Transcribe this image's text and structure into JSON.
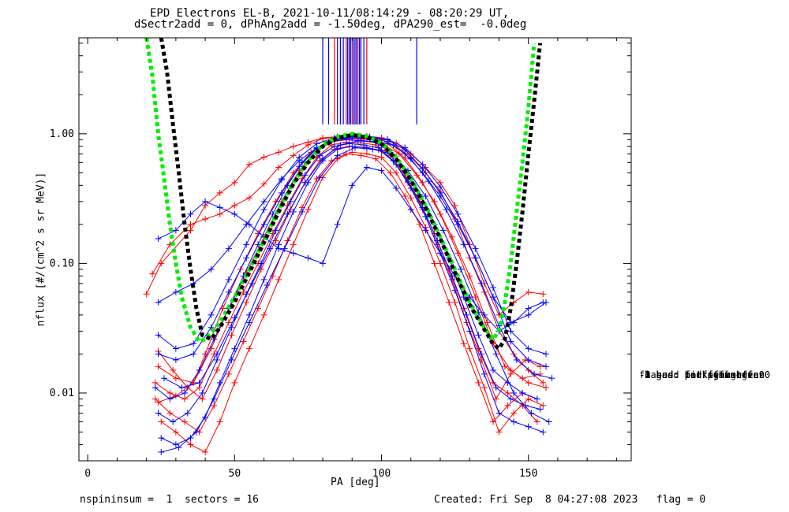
{
  "title_line1": "EPD Electrons EL-B, 2021-10-11/08:14:29 - 08:20:29 UT,",
  "title_line2": "dSectr2add = 0, dPhAng2add = -1.50deg, dPA290_est=  -0.0deg",
  "footer": {
    "left": "nspininsum =  1  sectors = 16",
    "right": "Created: Fri Sep  8 04:27:08 2023   flag = 0"
  },
  "legend": {
    "title": "flag",
    "items": [
      " 0 good fit",
      " 1 bad: not converge",
      " 2 bad: no fit",
      " 3 bad: bad fgm state",
      "-1 sus: far off median",
      "-2 sus: not symmetric",
      "-3 sus: fit peak off 90",
      "-4 sus: peaks high var"
    ]
  },
  "chart_data": {
    "type": "line",
    "title": "EPD Electrons EL-B, 2021-10-11/08:14:29 - 08:20:29 UT,",
    "subtitle": "dSectr2add = 0, dPhAng2add = -1.50deg, dPA290_est=  -0.0deg",
    "xlabel": "PA [deg]",
    "ylabel": "nflux [#/(cm^2 s sr MeV)]",
    "xlim": [
      -3,
      185
    ],
    "ylim": [
      0.003,
      5.5
    ],
    "yscale": "log",
    "xticks": [
      0,
      50,
      100,
      150
    ],
    "xtick_labels": [
      "0",
      "50",
      "100",
      "150"
    ],
    "yticks": [
      0.01,
      0.1,
      1.0
    ],
    "ytick_labels": [
      "0.01",
      "0.10",
      "1.00"
    ],
    "colors": {
      "red": "#ff0000",
      "blue": "#0000ff",
      "green": "#00ee00",
      "black": "#000000"
    },
    "fit_curves": [
      {
        "color": "#00ee00",
        "x": [
          20,
          22,
          24,
          26,
          28,
          30,
          32,
          35,
          38,
          40,
          45,
          50,
          55,
          60,
          65,
          70,
          75,
          80,
          85,
          90,
          95,
          100,
          105,
          110,
          115,
          120,
          125,
          130,
          135,
          138,
          140,
          142,
          144,
          146,
          148,
          150,
          152
        ],
        "y": [
          5.5,
          2.8,
          1.0,
          0.45,
          0.2,
          0.1,
          0.055,
          0.032,
          0.025,
          0.026,
          0.035,
          0.055,
          0.09,
          0.15,
          0.26,
          0.42,
          0.62,
          0.82,
          0.95,
          1.0,
          0.96,
          0.85,
          0.66,
          0.45,
          0.28,
          0.16,
          0.09,
          0.05,
          0.032,
          0.026,
          0.03,
          0.05,
          0.1,
          0.25,
          0.6,
          1.6,
          5.0
        ]
      },
      {
        "color": "#000000",
        "x": [
          25,
          27,
          29,
          31,
          33,
          35,
          37,
          39,
          42,
          45,
          50,
          55,
          60,
          65,
          70,
          75,
          80,
          85,
          90,
          95,
          100,
          105,
          110,
          115,
          120,
          125,
          130,
          135,
          138,
          140,
          142,
          144,
          146,
          148,
          150,
          152,
          154
        ],
        "y": [
          5.5,
          3.0,
          1.2,
          0.5,
          0.2,
          0.09,
          0.045,
          0.028,
          0.026,
          0.032,
          0.05,
          0.085,
          0.145,
          0.25,
          0.41,
          0.6,
          0.8,
          0.93,
          0.98,
          0.94,
          0.83,
          0.64,
          0.44,
          0.27,
          0.155,
          0.085,
          0.048,
          0.031,
          0.024,
          0.022,
          0.026,
          0.045,
          0.1,
          0.25,
          0.7,
          1.8,
          5.0
        ]
      }
    ],
    "fit_vertical_lines_x": [
      80,
      82,
      84,
      85,
      86,
      87,
      88,
      88.5,
      89,
      89.5,
      90,
      90.5,
      91,
      91.5,
      92,
      92.5,
      93,
      94,
      95,
      112
    ],
    "series_red": [
      {
        "x": [
          20,
          25,
          35,
          40,
          45,
          50,
          55,
          60,
          65,
          70,
          75,
          80,
          85,
          90,
          95,
          100,
          105,
          110,
          115,
          120,
          125,
          130,
          135,
          140,
          145,
          150,
          155
        ],
        "y": [
          0.058,
          0.1,
          0.18,
          0.28,
          0.35,
          0.42,
          0.58,
          0.66,
          0.72,
          0.8,
          0.86,
          0.93,
          0.95,
          0.97,
          0.96,
          0.93,
          0.85,
          0.7,
          0.55,
          0.42,
          0.28,
          0.14,
          0.07,
          0.04,
          0.05,
          0.06,
          0.058
        ]
      },
      {
        "x": [
          22,
          28,
          35,
          40,
          45,
          50,
          55,
          60,
          65,
          70,
          75,
          80,
          85,
          90,
          95,
          100,
          105,
          110,
          115,
          120,
          125,
          130,
          135,
          140,
          145,
          150,
          155
        ],
        "y": [
          0.083,
          0.14,
          0.2,
          0.22,
          0.24,
          0.28,
          0.32,
          0.41,
          0.55,
          0.68,
          0.82,
          0.92,
          0.94,
          0.95,
          0.93,
          0.9,
          0.8,
          0.66,
          0.5,
          0.36,
          0.22,
          0.11,
          0.06,
          0.03,
          0.02,
          0.015,
          0.012
        ]
      },
      {
        "x": [
          23,
          28,
          33,
          38,
          43,
          48,
          53,
          58,
          63,
          68,
          73,
          78,
          83,
          88,
          93,
          98,
          103,
          108,
          113,
          118,
          123,
          128,
          133,
          138,
          143,
          148,
          153
        ],
        "y": [
          0.012,
          0.01,
          0.009,
          0.011,
          0.02,
          0.035,
          0.06,
          0.1,
          0.17,
          0.28,
          0.45,
          0.66,
          0.82,
          0.86,
          0.85,
          0.82,
          0.68,
          0.48,
          0.3,
          0.17,
          0.09,
          0.045,
          0.022,
          0.012,
          0.01,
          0.008,
          0.006
        ]
      },
      {
        "x": [
          24,
          29,
          34,
          39,
          44,
          49,
          54,
          59,
          64,
          69,
          74,
          79,
          84,
          89,
          94,
          99,
          104,
          109,
          114,
          119,
          124,
          129,
          134,
          139,
          144,
          149,
          154
        ],
        "y": [
          0.021,
          0.015,
          0.011,
          0.009,
          0.015,
          0.028,
          0.05,
          0.09,
          0.15,
          0.26,
          0.42,
          0.62,
          0.76,
          0.8,
          0.79,
          0.75,
          0.62,
          0.42,
          0.26,
          0.14,
          0.075,
          0.035,
          0.018,
          0.009,
          0.014,
          0.018,
          0.016
        ]
      },
      {
        "x": [
          23,
          28,
          33,
          38,
          43,
          48,
          53,
          58,
          63,
          68,
          73,
          78,
          83,
          88,
          93,
          98,
          103,
          108,
          113,
          118,
          123,
          128,
          133,
          138,
          143,
          148,
          153
        ],
        "y": [
          0.009,
          0.007,
          0.006,
          0.005,
          0.008,
          0.014,
          0.025,
          0.045,
          0.08,
          0.15,
          0.27,
          0.45,
          0.62,
          0.7,
          0.68,
          0.64,
          0.5,
          0.33,
          0.2,
          0.1,
          0.05,
          0.024,
          0.012,
          0.006,
          0.008,
          0.01,
          0.009
        ]
      },
      {
        "x": [
          25,
          30,
          35,
          40,
          45,
          50,
          55,
          60,
          65,
          70,
          75,
          80,
          85,
          90,
          95,
          100,
          105,
          110,
          115,
          120,
          125,
          130,
          135,
          140,
          145,
          150,
          155
        ],
        "y": [
          0.006,
          0.005,
          0.004,
          0.0035,
          0.006,
          0.012,
          0.022,
          0.04,
          0.075,
          0.14,
          0.26,
          0.46,
          0.64,
          0.72,
          0.7,
          0.66,
          0.5,
          0.32,
          0.19,
          0.1,
          0.05,
          0.022,
          0.011,
          0.005,
          0.007,
          0.009,
          0.008
        ]
      },
      {
        "x": [
          24,
          30,
          36,
          40,
          46,
          52,
          58,
          64,
          70,
          76,
          82,
          88,
          94,
          100,
          106,
          112,
          118,
          124,
          130,
          136,
          142,
          148,
          154
        ],
        "y": [
          0.016,
          0.013,
          0.012,
          0.02,
          0.045,
          0.09,
          0.17,
          0.3,
          0.5,
          0.72,
          0.86,
          0.9,
          0.88,
          0.84,
          0.7,
          0.48,
          0.3,
          0.16,
          0.08,
          0.035,
          0.016,
          0.013,
          0.014
        ]
      },
      {
        "x": [
          24,
          30,
          36,
          42,
          48,
          54,
          60,
          66,
          72,
          78,
          84,
          90,
          96,
          102,
          108,
          114,
          120,
          126,
          132,
          138,
          144,
          150,
          156
        ],
        "y": [
          0.0085,
          0.0095,
          0.012,
          0.022,
          0.045,
          0.085,
          0.16,
          0.3,
          0.52,
          0.75,
          0.88,
          0.92,
          0.9,
          0.84,
          0.65,
          0.42,
          0.24,
          0.12,
          0.055,
          0.024,
          0.015,
          0.012,
          0.011
        ]
      }
    ],
    "series_blue": [
      {
        "x": [
          24,
          30,
          35,
          40,
          45,
          50,
          55,
          60,
          65,
          70,
          75,
          80,
          85,
          90,
          95,
          100,
          105,
          110,
          115,
          120,
          125,
          130,
          135,
          140,
          145,
          150,
          155
        ],
        "y": [
          0.155,
          0.18,
          0.24,
          0.3,
          0.27,
          0.24,
          0.2,
          0.16,
          0.13,
          0.12,
          0.11,
          0.1,
          0.2,
          0.4,
          0.55,
          0.52,
          0.38,
          0.26,
          0.18,
          0.12,
          0.08,
          0.055,
          0.04,
          0.03,
          0.035,
          0.045,
          0.05
        ]
      },
      {
        "x": [
          24,
          30,
          36,
          42,
          48,
          54,
          60,
          66,
          72,
          78,
          84,
          90,
          96,
          102,
          108,
          114,
          120,
          126,
          132,
          138,
          144,
          150,
          156
        ],
        "y": [
          0.05,
          0.06,
          0.07,
          0.09,
          0.13,
          0.2,
          0.3,
          0.45,
          0.62,
          0.78,
          0.9,
          0.93,
          0.92,
          0.87,
          0.7,
          0.5,
          0.33,
          0.2,
          0.11,
          0.055,
          0.035,
          0.04,
          0.05
        ]
      },
      {
        "x": [
          23,
          28,
          33,
          38,
          43,
          48,
          53,
          58,
          63,
          68,
          73,
          78,
          83,
          88,
          93,
          98,
          103,
          108,
          113,
          118,
          123,
          128,
          133,
          138,
          143,
          148,
          153
        ],
        "y": [
          0.011,
          0.009,
          0.01,
          0.015,
          0.026,
          0.045,
          0.08,
          0.14,
          0.24,
          0.4,
          0.6,
          0.78,
          0.88,
          0.9,
          0.89,
          0.86,
          0.72,
          0.52,
          0.34,
          0.2,
          0.11,
          0.055,
          0.028,
          0.015,
          0.012,
          0.01,
          0.009
        ]
      },
      {
        "x": [
          24,
          29,
          34,
          39,
          44,
          49,
          54,
          59,
          64,
          69,
          74,
          79,
          84,
          89,
          94,
          99,
          104,
          109,
          114,
          119,
          124,
          129,
          134,
          139,
          144,
          149,
          154
        ],
        "y": [
          0.007,
          0.006,
          0.007,
          0.01,
          0.018,
          0.032,
          0.058,
          0.1,
          0.18,
          0.3,
          0.48,
          0.68,
          0.8,
          0.84,
          0.82,
          0.78,
          0.62,
          0.43,
          0.27,
          0.15,
          0.08,
          0.04,
          0.02,
          0.011,
          0.009,
          0.008,
          0.0075
        ]
      },
      {
        "x": [
          25,
          30,
          35,
          40,
          45,
          50,
          55,
          60,
          65,
          70,
          75,
          80,
          85,
          90,
          95,
          100,
          105,
          110,
          115,
          120,
          125,
          130,
          135,
          140,
          145,
          150,
          155
        ],
        "y": [
          0.0045,
          0.004,
          0.0045,
          0.0065,
          0.012,
          0.022,
          0.04,
          0.075,
          0.14,
          0.25,
          0.42,
          0.62,
          0.76,
          0.8,
          0.78,
          0.74,
          0.58,
          0.38,
          0.23,
          0.12,
          0.062,
          0.03,
          0.014,
          0.007,
          0.006,
          0.0055,
          0.005
        ]
      },
      {
        "x": [
          24,
          30,
          36,
          42,
          48,
          54,
          60,
          66,
          72,
          78,
          84,
          90,
          96,
          102,
          108,
          114,
          120,
          126,
          132,
          138,
          144,
          150,
          156
        ],
        "y": [
          0.02,
          0.018,
          0.02,
          0.032,
          0.06,
          0.11,
          0.2,
          0.35,
          0.56,
          0.77,
          0.9,
          0.95,
          0.94,
          0.9,
          0.75,
          0.54,
          0.35,
          0.21,
          0.11,
          0.055,
          0.025,
          0.018,
          0.016
        ]
      },
      {
        "x": [
          25,
          31,
          37,
          43,
          49,
          55,
          61,
          67,
          73,
          79,
          85,
          91,
          97,
          103,
          109,
          115,
          121,
          127,
          133,
          139,
          145,
          151,
          157
        ],
        "y": [
          0.0035,
          0.0038,
          0.005,
          0.009,
          0.018,
          0.035,
          0.068,
          0.13,
          0.25,
          0.46,
          0.68,
          0.78,
          0.76,
          0.7,
          0.52,
          0.33,
          0.18,
          0.09,
          0.042,
          0.02,
          0.01,
          0.007,
          0.006
        ]
      },
      {
        "x": [
          24,
          30,
          36,
          42,
          48,
          54,
          60,
          66,
          72,
          78,
          84,
          90,
          96,
          102,
          108,
          114,
          120,
          126,
          132,
          138,
          144,
          150,
          156
        ],
        "y": [
          0.028,
          0.022,
          0.024,
          0.04,
          0.075,
          0.14,
          0.26,
          0.44,
          0.66,
          0.84,
          0.93,
          0.96,
          0.95,
          0.91,
          0.78,
          0.58,
          0.39,
          0.24,
          0.13,
          0.065,
          0.03,
          0.022,
          0.02
        ]
      },
      {
        "x": [
          26,
          32,
          38,
          44,
          50,
          56,
          62,
          68,
          74,
          80,
          86,
          92,
          98,
          104,
          110,
          116,
          122,
          128,
          134,
          140,
          146,
          152,
          158
        ],
        "y": [
          0.013,
          0.011,
          0.012,
          0.02,
          0.038,
          0.07,
          0.13,
          0.24,
          0.42,
          0.64,
          0.82,
          0.88,
          0.87,
          0.82,
          0.64,
          0.43,
          0.26,
          0.14,
          0.07,
          0.033,
          0.018,
          0.014,
          0.013
        ]
      }
    ]
  }
}
